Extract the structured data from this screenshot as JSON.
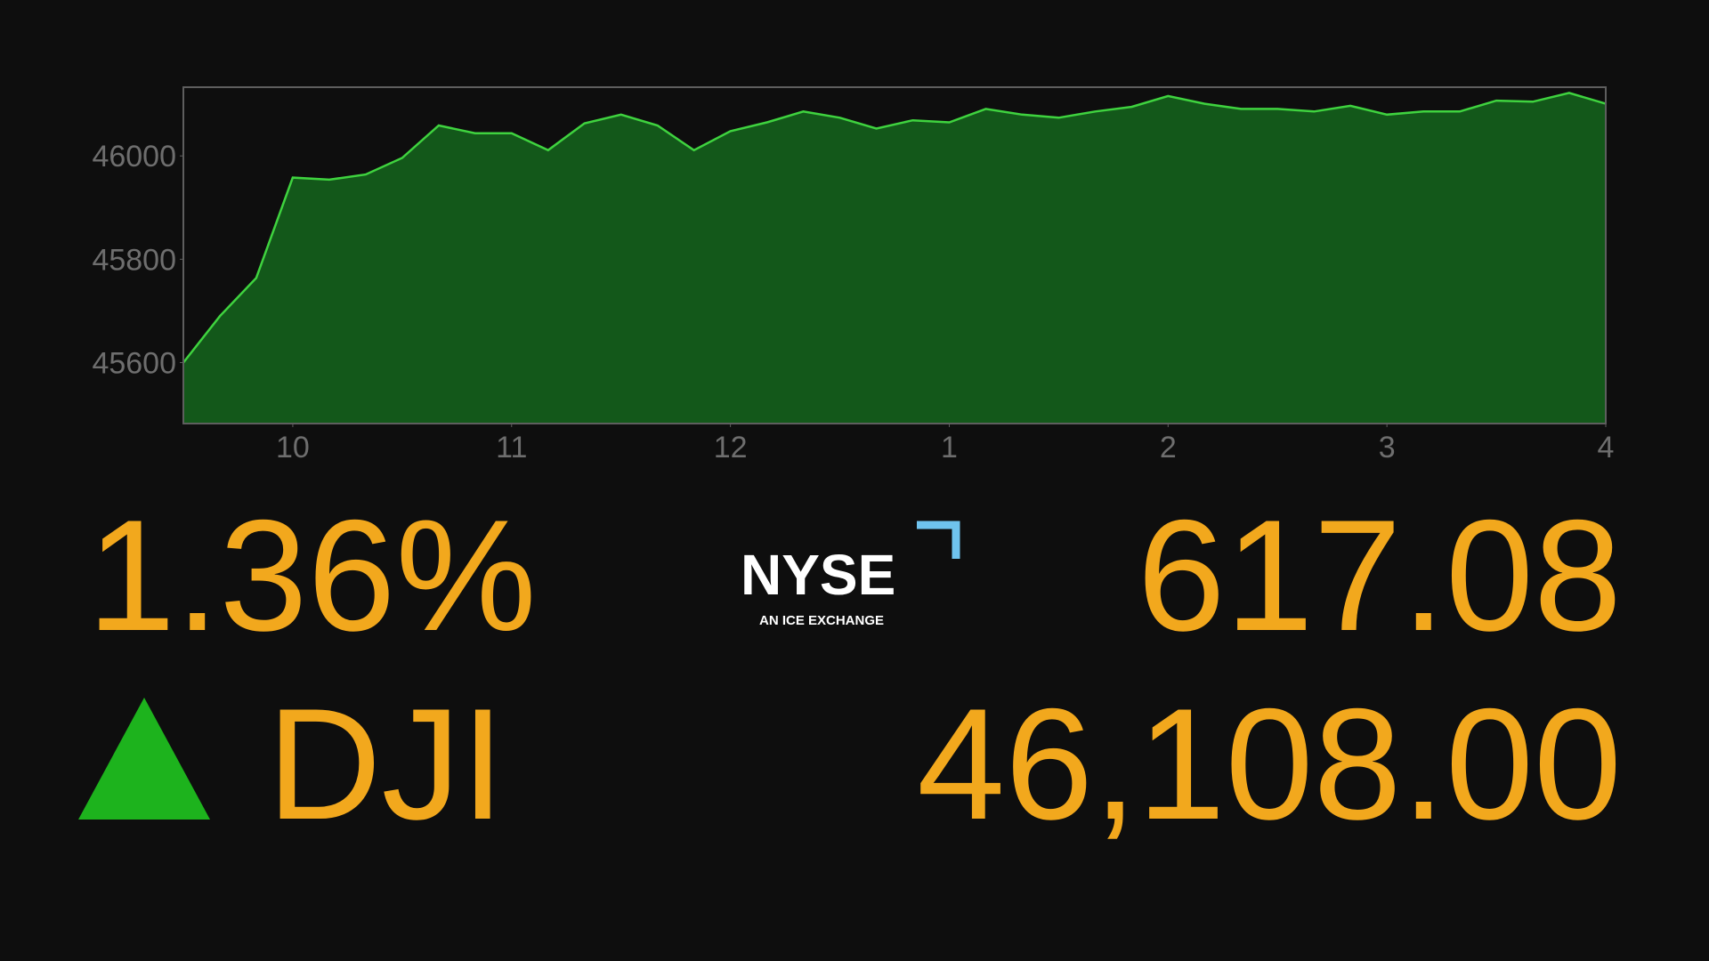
{
  "chart_data": {
    "type": "area",
    "x": [
      9.5,
      9.667,
      9.833,
      10,
      10.167,
      10.333,
      10.5,
      10.667,
      10.833,
      11,
      11.167,
      11.333,
      11.5,
      11.667,
      11.833,
      12,
      12.167,
      12.333,
      12.5,
      12.667,
      12.833,
      13,
      13.167,
      13.333,
      13.5,
      13.667,
      13.833,
      14,
      14.167,
      14.333,
      14.5,
      14.667,
      14.833,
      15,
      15.167,
      15.333,
      15.5,
      15.667,
      15.833,
      16
    ],
    "values": [
      45600,
      45690,
      45764,
      45958,
      45954,
      45964,
      45996,
      46059,
      46044,
      46044,
      46011,
      46063,
      46080,
      46059,
      46011,
      46048,
      46065,
      46086,
      46074,
      46053,
      46069,
      46065,
      46091,
      46080,
      46074,
      46086,
      46095,
      46116,
      46101,
      46091,
      46091,
      46086,
      46097,
      46080,
      46086,
      46086,
      46107,
      46105,
      46122,
      46101
    ],
    "color": "#3fd33f",
    "fill": "#13581a",
    "xlim": [
      9.5,
      16
    ],
    "ylim": [
      45482,
      46133
    ],
    "xticks": [
      10,
      11,
      12,
      {
        "value": 13,
        "label": "1"
      },
      {
        "value": 14,
        "label": "2"
      },
      {
        "value": 15,
        "label": "3"
      },
      {
        "value": 16,
        "label": "4"
      }
    ],
    "yticks": [
      45600,
      45800,
      46000
    ]
  },
  "ticker": {
    "percent_change": "1.36%",
    "point_change": "617.08",
    "symbol": "DJI",
    "price": "46,108.00"
  },
  "logo": {
    "name": "NYSE",
    "tagline": "AN ICE EXCHANGE"
  }
}
